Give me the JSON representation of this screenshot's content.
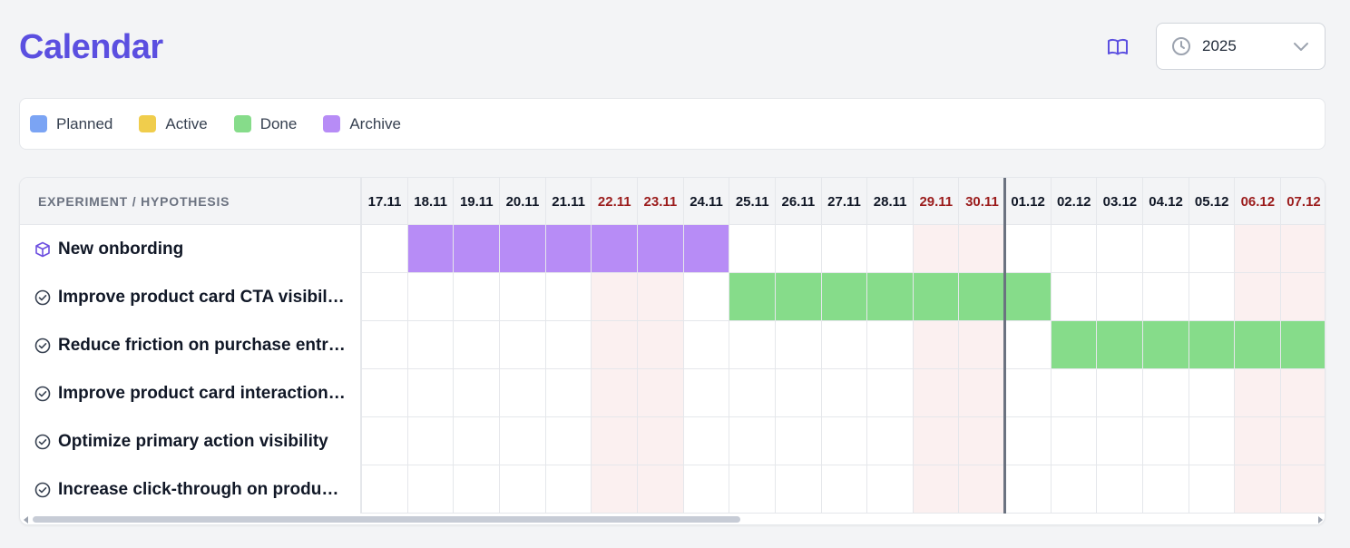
{
  "header": {
    "title": "Calendar",
    "book_icon": "book-open-icon",
    "year_select": {
      "value": "2025",
      "icon": "clock-icon",
      "chevron": "chevron-down-icon"
    }
  },
  "legend": [
    {
      "label": "Planned",
      "color": "#7ba4f4"
    },
    {
      "label": "Active",
      "color": "#f0cd4c"
    },
    {
      "label": "Done",
      "color": "#86dc8a"
    },
    {
      "label": "Archive",
      "color": "#b78cf6"
    }
  ],
  "grid": {
    "column_header": "EXPERIMENT / HYPOTHESIS",
    "dates": [
      {
        "label": "17.11",
        "weekend": false
      },
      {
        "label": "18.11",
        "weekend": false
      },
      {
        "label": "19.11",
        "weekend": false
      },
      {
        "label": "20.11",
        "weekend": false
      },
      {
        "label": "21.11",
        "weekend": false
      },
      {
        "label": "22.11",
        "weekend": true
      },
      {
        "label": "23.11",
        "weekend": true
      },
      {
        "label": "24.11",
        "weekend": false
      },
      {
        "label": "25.11",
        "weekend": false
      },
      {
        "label": "26.11",
        "weekend": false
      },
      {
        "label": "27.11",
        "weekend": false
      },
      {
        "label": "28.11",
        "weekend": false
      },
      {
        "label": "29.11",
        "weekend": true
      },
      {
        "label": "30.11",
        "weekend": true
      },
      {
        "label": "01.12",
        "weekend": false
      },
      {
        "label": "02.12",
        "weekend": false
      },
      {
        "label": "03.12",
        "weekend": false
      },
      {
        "label": "04.12",
        "weekend": false
      },
      {
        "label": "05.12",
        "weekend": false
      },
      {
        "label": "06.12",
        "weekend": true
      },
      {
        "label": "07.12",
        "weekend": true
      }
    ],
    "today": "01.12",
    "rows": [
      {
        "label": "New onbording",
        "icon": "cube-icon",
        "status": "archive",
        "from": "18.11",
        "to": "24.11"
      },
      {
        "label": "Improve product card CTA visibility",
        "icon": "check-circle-icon",
        "status": "done",
        "from": "25.11",
        "to": "01.12"
      },
      {
        "label": "Reduce friction on purchase entr…",
        "icon": "check-circle-icon",
        "status": "done",
        "from": "02.12",
        "to": "07.12"
      },
      {
        "label": "Improve product card interaction…",
        "icon": "check-circle-icon",
        "status": "none",
        "from": "",
        "to": ""
      },
      {
        "label": "Optimize primary action visibility",
        "icon": "check-circle-icon",
        "status": "none",
        "from": "",
        "to": ""
      },
      {
        "label": "Increase click-through on produc…",
        "icon": "check-circle-icon",
        "status": "none",
        "from": "",
        "to": ""
      }
    ],
    "status_colors": {
      "archive": "#b78cf6",
      "done": "#86dc8a",
      "active": "#f0cd4c",
      "planned": "#7ba4f4"
    }
  }
}
